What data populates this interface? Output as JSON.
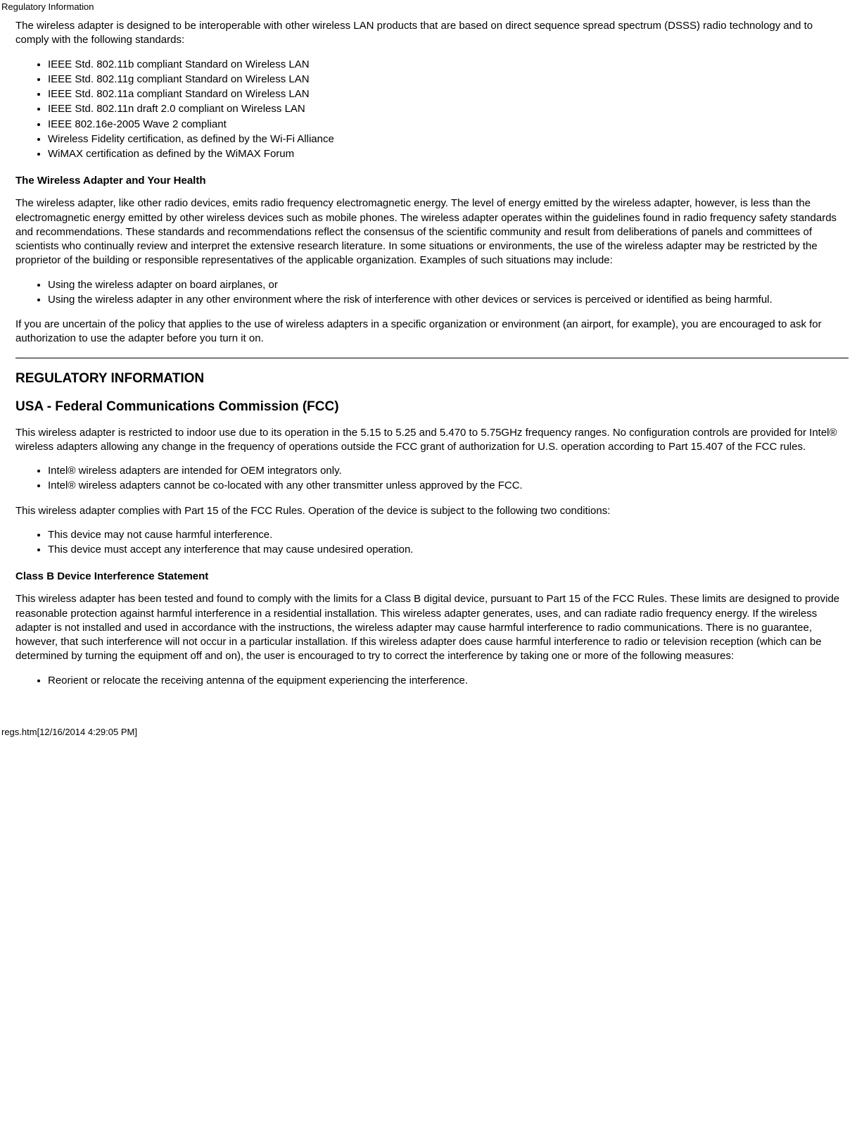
{
  "header": {
    "title": "Regulatory Information"
  },
  "intro": {
    "p1": "The wireless adapter is designed to be interoperable with other wireless LAN products that are based on direct sequence spread spectrum (DSSS) radio technology and to comply with the following standards:",
    "list": [
      "IEEE Std. 802.11b compliant Standard on Wireless LAN",
      "IEEE Std. 802.11g compliant Standard on Wireless LAN",
      "IEEE Std. 802.11a compliant Standard on Wireless LAN",
      "IEEE Std. 802.11n draft 2.0 compliant on Wireless LAN",
      "IEEE 802.16e-2005 Wave 2 compliant",
      "Wireless Fidelity certification, as defined by the Wi-Fi Alliance",
      "WiMAX certification as defined by the WiMAX Forum"
    ]
  },
  "health": {
    "heading": "The Wireless Adapter and Your Health",
    "p1": "The wireless adapter, like other radio devices, emits radio frequency electromagnetic energy. The level of energy emitted by the wireless adapter, however, is less than the electromagnetic energy emitted by other wireless devices such as mobile phones. The wireless adapter operates within the guidelines found in radio frequency safety standards and recommendations. These standards and recommendations reflect the consensus of the scientific community and result from deliberations of panels and committees of scientists who continually review and interpret the extensive research literature. In some situations or environments, the use of the wireless adapter may be restricted by the proprietor of the building or responsible representatives of the applicable organization. Examples of such situations may include:",
    "list": [
      "Using the wireless adapter on board airplanes, or",
      "Using the wireless adapter in any other environment where the risk of interference with other devices or services is perceived or identified as being harmful."
    ],
    "p2": "If you are uncertain of the policy that applies to the use of wireless adapters in a specific organization or environment (an airport, for example), you are encouraged to ask for authorization to use the adapter before you turn it on."
  },
  "reg": {
    "heading": "REGULATORY INFORMATION",
    "usa_heading": "USA - Federal Communications Commission (FCC)",
    "p1": "This wireless adapter is restricted to indoor use due to its operation in the 5.15 to 5.25 and 5.470 to 5.75GHz frequency ranges. No configuration controls are provided for Intel® wireless adapters allowing any change in the frequency of operations outside the FCC grant of authorization for U.S. operation according to Part 15.407 of the FCC rules.",
    "list1": [
      "Intel® wireless adapters are intended for OEM integrators only.",
      "Intel® wireless adapters cannot be co-located with any other transmitter unless approved by the FCC."
    ],
    "p2": "This wireless adapter complies with Part 15 of the FCC Rules. Operation of the device is subject to the following two conditions:",
    "list2": [
      "This device may not cause harmful interference.",
      "This device must accept any interference that may cause undesired operation."
    ],
    "classb_heading": "Class B Device Interference Statement",
    "p3": "This wireless adapter has been tested and found to comply with the limits for a Class B digital device, pursuant to Part 15 of the FCC Rules. These limits are designed to provide reasonable protection against harmful interference in a residential installation. This wireless adapter generates, uses, and can radiate radio frequency energy. If the wireless adapter is not installed and used in accordance with the instructions, the wireless adapter may cause harmful interference to radio communications. There is no guarantee, however, that such interference will not occur in a particular installation. If this wireless adapter does cause harmful interference to radio or television reception (which can be determined by turning the equipment off and on), the user is encouraged to try to correct the interference by taking one or more of the following measures:",
    "list3": [
      "Reorient or relocate the receiving antenna of the equipment experiencing the interference."
    ]
  },
  "footer": {
    "path": "regs.htm[12/16/2014 4:29:05 PM]"
  }
}
